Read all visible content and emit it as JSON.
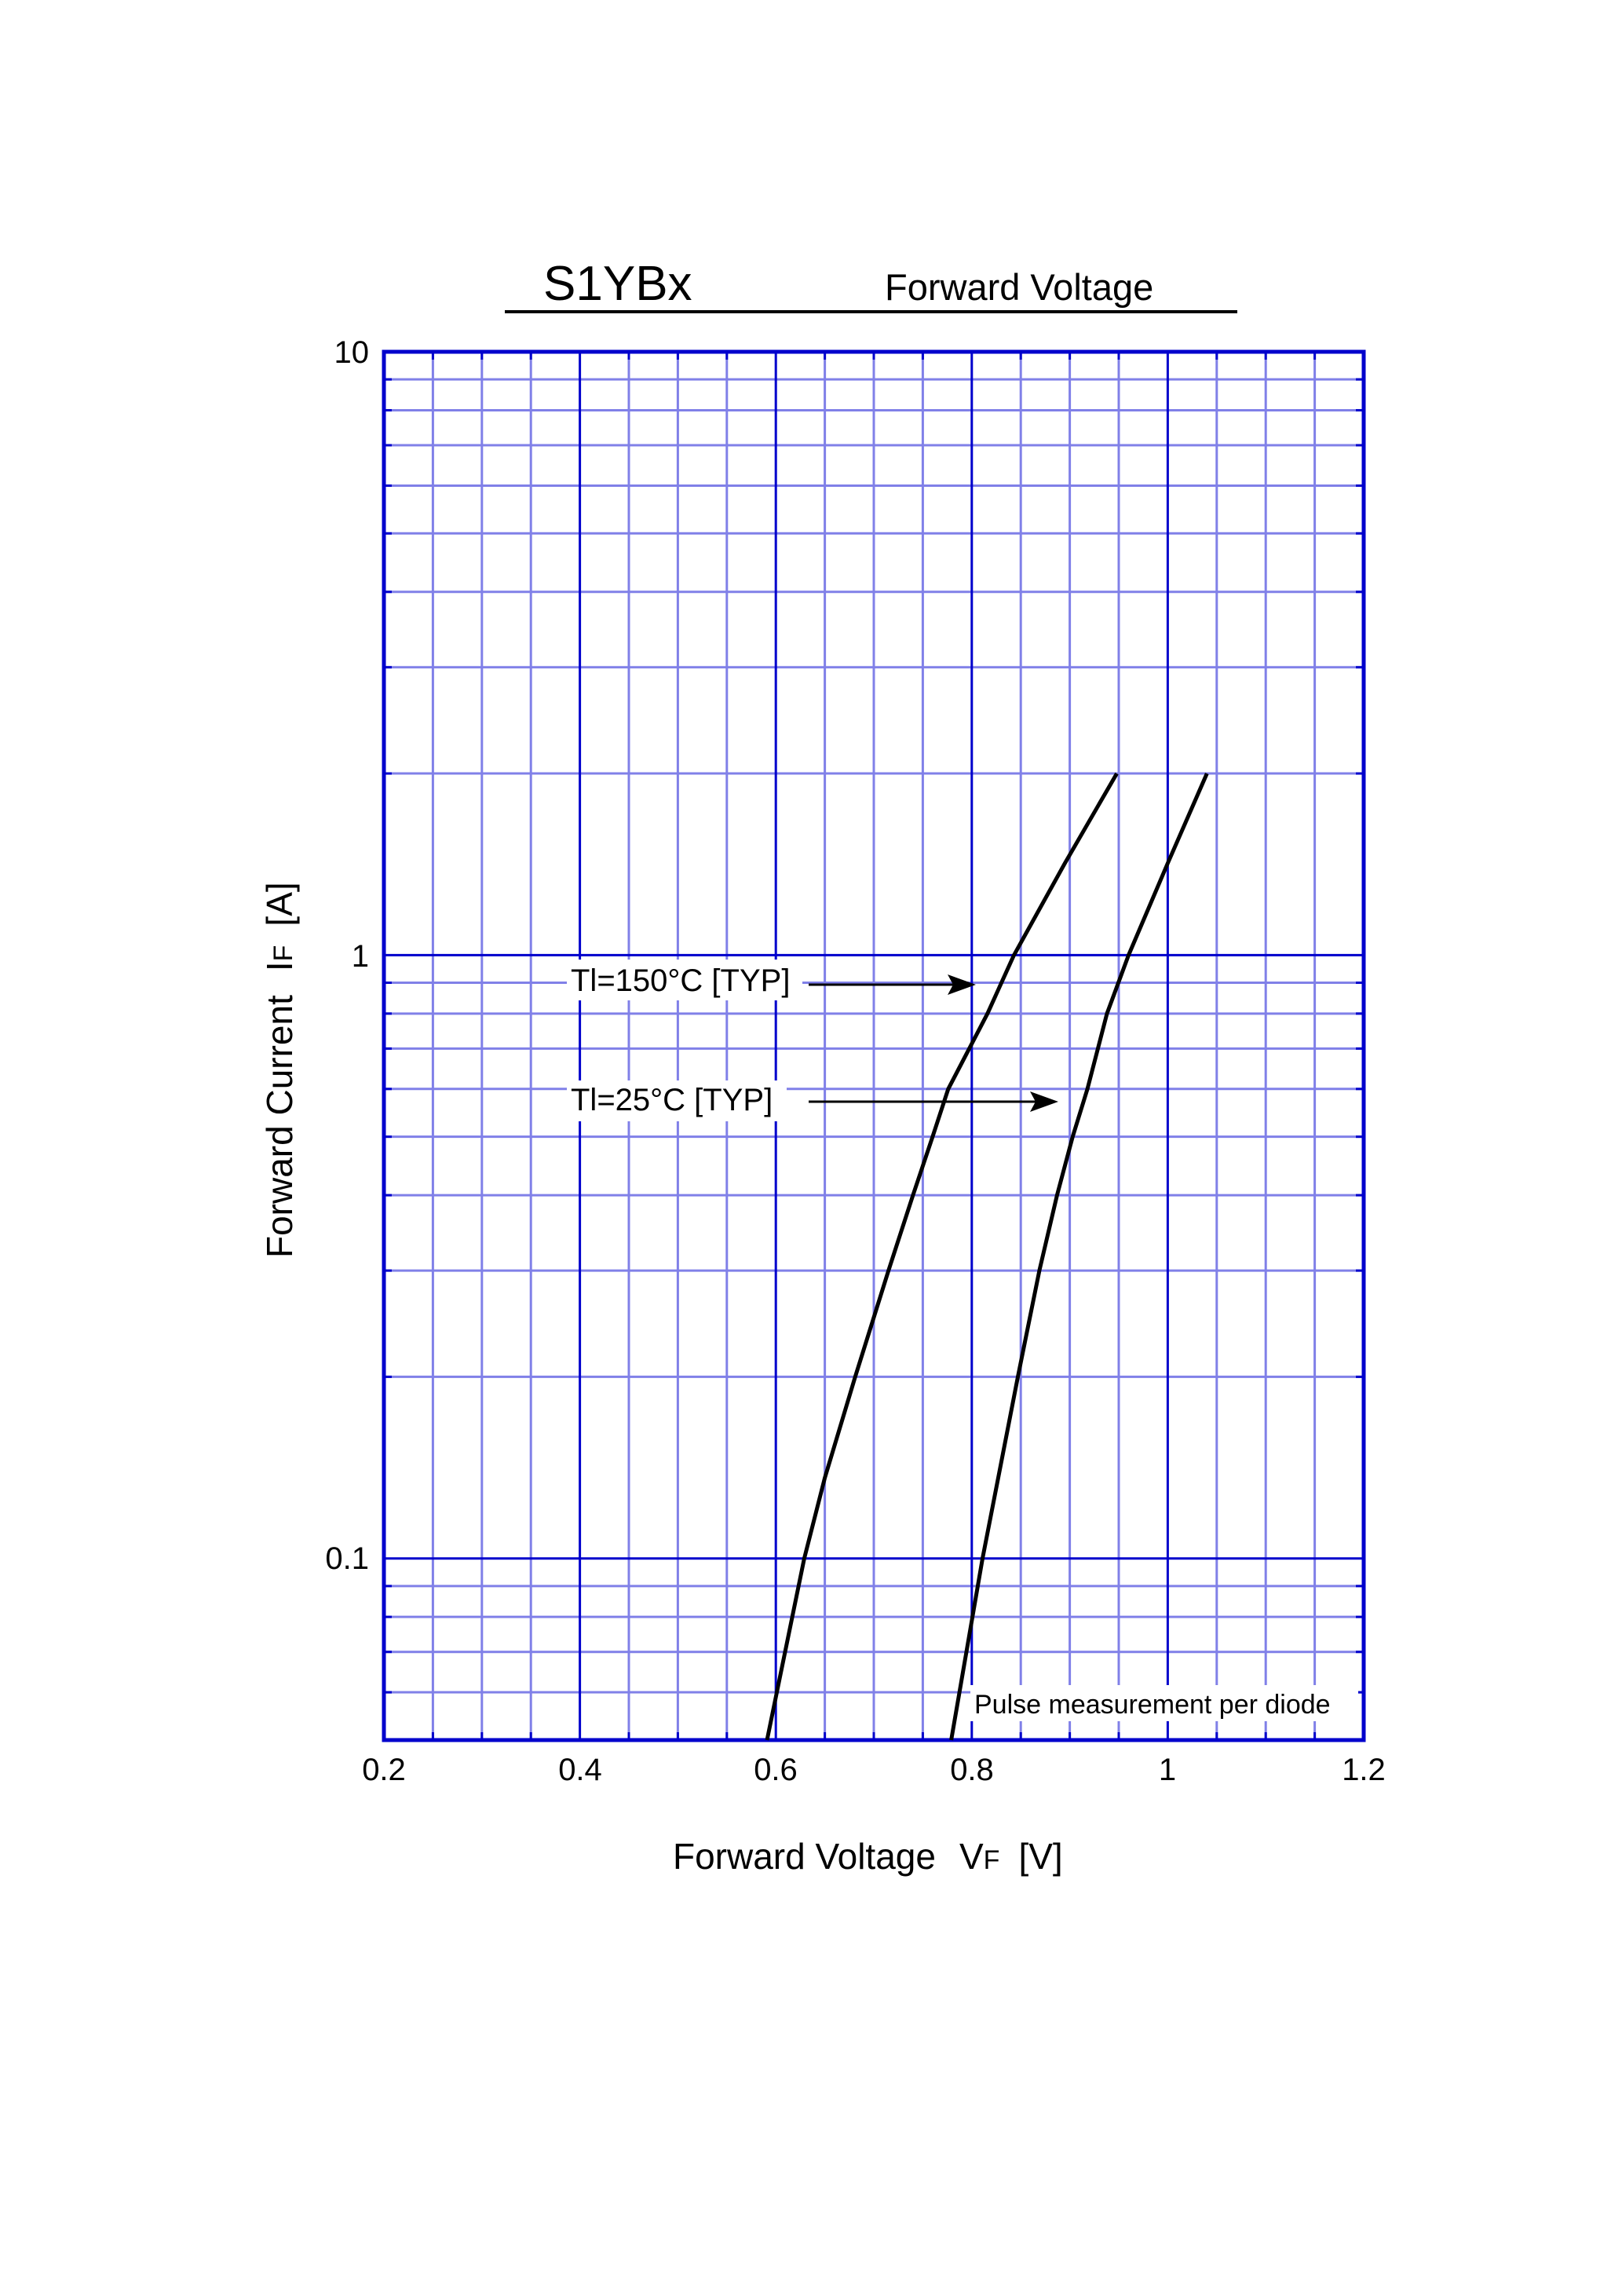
{
  "header": {
    "part_number": "S1YBx",
    "subtitle": "Forward Voltage"
  },
  "colors": {
    "grid_major": "#0000cc",
    "grid_minor": "#8080e8",
    "curve": "#000000",
    "background": "#ffffff"
  },
  "axes": {
    "x_title": "Forward Voltage",
    "x_symbol": "V",
    "x_symbol_sub": "F",
    "x_unit": "[V]",
    "y_title": "Forward Current",
    "y_symbol": "I",
    "y_symbol_sub": "F",
    "y_unit": "[A]",
    "x_ticks": [
      "0.2",
      "0.4",
      "0.6",
      "0.8",
      "1",
      "1.2"
    ],
    "y_ticks": [
      "10",
      "1",
      "0.1"
    ]
  },
  "annotations": {
    "curve_150": "Tl=150°C [TYP]",
    "curve_25": "Tl=25°C [TYP]",
    "note": "Pulse measurement per diode"
  },
  "chart_data": {
    "type": "line",
    "title": "S1YBx Forward Voltage",
    "xlabel": "Forward Voltage VF [V]",
    "ylabel": "Forward Current IF [A]",
    "xlim": [
      0.2,
      1.2
    ],
    "ylim": [
      0.05,
      10
    ],
    "xscale": "linear",
    "yscale": "log",
    "x_major_ticks": [
      0.2,
      0.4,
      0.6,
      0.8,
      1.0,
      1.2
    ],
    "x_minor_step": 0.05,
    "y_major_ticks": [
      0.1,
      1,
      10
    ],
    "grid": true,
    "legend": "inline arrow annotations",
    "note": "Pulse measurement per diode",
    "series": [
      {
        "name": "Tl=150°C [TYP]",
        "points": [
          [
            0.591,
            0.05
          ],
          [
            0.629,
            0.1
          ],
          [
            0.65,
            0.136
          ],
          [
            0.681,
            0.2
          ],
          [
            0.715,
            0.3
          ],
          [
            0.74,
            0.4
          ],
          [
            0.76,
            0.5
          ],
          [
            0.776,
            0.6
          ],
          [
            0.816,
            0.8
          ],
          [
            0.843,
            1.0
          ],
          [
            0.895,
            1.42
          ],
          [
            0.948,
            2.0
          ]
        ]
      },
      {
        "name": "Tl=25°C [TYP]",
        "points": [
          [
            0.779,
            0.05
          ],
          [
            0.811,
            0.1
          ],
          [
            0.847,
            0.2
          ],
          [
            0.869,
            0.3
          ],
          [
            0.887,
            0.4
          ],
          [
            0.903,
            0.5
          ],
          [
            0.918,
            0.6
          ],
          [
            0.938,
            0.8
          ],
          [
            0.96,
            1.0
          ],
          [
            1.0,
            1.42
          ],
          [
            1.04,
            2.0
          ]
        ]
      }
    ]
  }
}
